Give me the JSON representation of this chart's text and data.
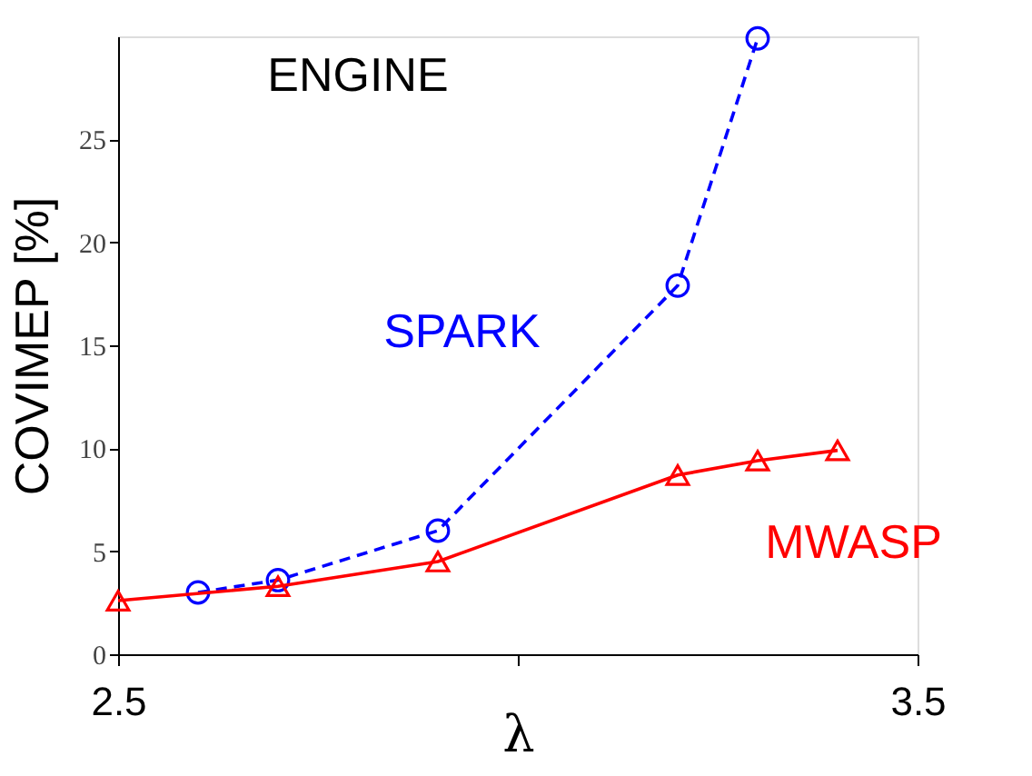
{
  "chart_data": {
    "type": "line",
    "title": "ENGINE",
    "xlabel": "λ",
    "ylabel": "COVIMEP [%]",
    "xlim": [
      2.5,
      3.5
    ],
    "xticks": [
      2.5,
      {
        "value": 3.0,
        "label": null
      },
      3.5
    ],
    "ylim": [
      0,
      30
    ],
    "yticks": [
      0,
      5,
      10,
      15,
      20,
      25
    ],
    "series": [
      {
        "name": "SPARK",
        "color": "#0000ff",
        "x": [
          2.6,
          2.7,
          2.9,
          3.2,
          3.3
        ],
        "values": [
          3.0,
          3.6,
          6.0,
          17.9,
          29.9
        ],
        "marker": "circle",
        "line_style": "dashed"
      },
      {
        "name": "MWASP",
        "color": "#ff0000",
        "x": [
          2.5,
          2.7,
          2.9,
          3.2,
          3.3,
          3.4
        ],
        "values": [
          2.6,
          3.3,
          4.5,
          8.7,
          9.4,
          9.9
        ],
        "marker": "triangle",
        "line_style": "solid"
      }
    ]
  }
}
